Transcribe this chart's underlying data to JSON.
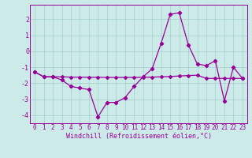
{
  "xlabel": "Windchill (Refroidissement éolien,°C)",
  "bg_color": "#cceae7",
  "line_color": "#990099",
  "grid_color": "#aad4d0",
  "hours": [
    0,
    1,
    2,
    3,
    4,
    5,
    6,
    7,
    8,
    9,
    10,
    11,
    12,
    13,
    14,
    15,
    16,
    17,
    18,
    19,
    20,
    21,
    22,
    23
  ],
  "windchill": [
    -1.3,
    -1.6,
    -1.6,
    -1.8,
    -2.2,
    -2.3,
    -2.4,
    -4.1,
    -3.2,
    -3.2,
    -2.9,
    -2.2,
    -1.6,
    -1.1,
    0.5,
    2.3,
    2.4,
    0.4,
    -0.8,
    -0.9,
    -0.6,
    -3.1,
    -1.0,
    -1.7
  ],
  "trend": [
    -1.3,
    -1.6,
    -1.6,
    -1.6,
    -1.62,
    -1.62,
    -1.63,
    -1.63,
    -1.64,
    -1.64,
    -1.64,
    -1.64,
    -1.63,
    -1.62,
    -1.6,
    -1.58,
    -1.55,
    -1.52,
    -1.5,
    -1.7,
    -1.7,
    -1.7,
    -1.7,
    -1.7
  ],
  "ylim": [
    -4.5,
    2.9
  ],
  "xlim": [
    -0.5,
    23.5
  ],
  "yticks": [
    -4,
    -3,
    -2,
    -1,
    0,
    1,
    2
  ],
  "xticks": [
    0,
    1,
    2,
    3,
    4,
    5,
    6,
    7,
    8,
    9,
    10,
    11,
    12,
    13,
    14,
    15,
    16,
    17,
    18,
    19,
    20,
    21,
    22,
    23
  ],
  "tick_fontsize": 5.5,
  "xlabel_fontsize": 6.0
}
